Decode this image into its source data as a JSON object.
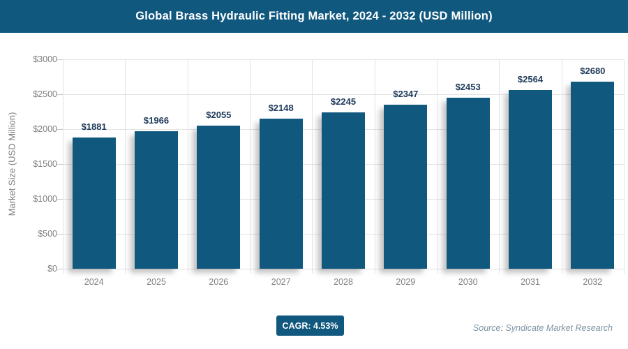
{
  "header": {
    "title": "Global Brass Hydraulic Fitting Market, 2024 - 2032 (USD Million)",
    "bg_color": "#11587f",
    "text_color": "#ffffff"
  },
  "chart_data": {
    "type": "bar",
    "title": "Global Brass Hydraulic Fitting Market, 2024 - 2032 (USD Million)",
    "categories": [
      "2024",
      "2025",
      "2026",
      "2027",
      "2028",
      "2029",
      "2030",
      "2031",
      "2032"
    ],
    "values": [
      1881,
      1966,
      2055,
      2148,
      2245,
      2347,
      2453,
      2564,
      2680
    ],
    "value_labels": [
      "$1881",
      "$1966",
      "$2055",
      "$2148",
      "$2245",
      "$2347",
      "$2453",
      "$2564",
      "$2680"
    ],
    "xlabel": "",
    "ylabel": "Market Size (USD Million)",
    "ylim": [
      0,
      3000
    ],
    "ytick_step": 500,
    "ytick_labels": [
      "$0",
      "$500",
      "$1000",
      "$1500",
      "$2000",
      "$2500",
      "$3000"
    ],
    "grid": true,
    "legend": "none",
    "bar_color": "#11587f",
    "value_label_color": "#1e3a5a",
    "axis_text_color": "#7f7f7f",
    "gridline_color": "#e3e3e3"
  },
  "footer": {
    "cagr_label": "CAGR: 4.53%",
    "source": "Source: Syndicate Market Research"
  }
}
